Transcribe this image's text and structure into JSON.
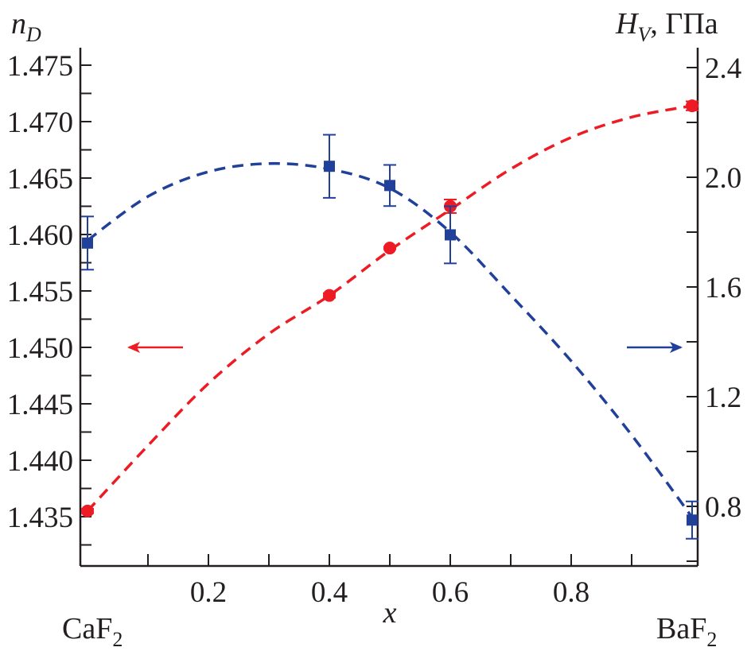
{
  "chart_data": {
    "type": "scatter",
    "title": "",
    "xlabel": "x",
    "x_end_labels": {
      "left": "CaF",
      "left_sub": "2",
      "right": "BaF",
      "right_sub": "2"
    },
    "ylabel_left": {
      "main": "n",
      "sub": "D"
    },
    "ylabel_right": {
      "main": "H",
      "sub": "V",
      "unit": ", ГПа"
    },
    "xlim": [
      0,
      1
    ],
    "ylim_left": [
      1.4318,
      1.4772
    ],
    "ylim_right": [
      0.575,
      2.465
    ],
    "x_ticks": [
      0.2,
      0.4,
      0.6,
      0.8
    ],
    "x_tick_labels": [
      "0.2",
      "0.4",
      "0.6",
      "0.8"
    ],
    "y_left_ticks": [
      1.435,
      1.44,
      1.445,
      1.45,
      1.455,
      1.46,
      1.465,
      1.47,
      1.475
    ],
    "y_left_tick_labels": [
      "1.435",
      "1.440",
      "1.445",
      "1.450",
      "1.455",
      "1.460",
      "1.465",
      "1.470",
      "1.475"
    ],
    "y_right_ticks": [
      0.8,
      1.2,
      1.6,
      2.0,
      2.4
    ],
    "y_right_tick_labels": [
      "0.8",
      "1.2",
      "1.6",
      "2.0",
      "2.4"
    ],
    "grid": false,
    "series": [
      {
        "name": "n_D",
        "axis": "left",
        "color": "#ed1c24",
        "marker": "circle",
        "x": [
          0,
          0.4,
          0.5,
          0.6,
          1.0
        ],
        "y": [
          1.4355,
          1.4546,
          1.4588,
          1.4625,
          1.4714
        ],
        "yerr": [
          0.0002,
          0.0002,
          0.0001,
          0.0006,
          0.0004
        ],
        "fit_x": [
          0,
          0.1,
          0.2,
          0.3,
          0.4,
          0.5,
          0.6,
          0.7,
          0.8,
          0.9,
          1.0
        ],
        "fit_y": [
          1.4355,
          1.4413,
          1.4468,
          1.4512,
          1.4546,
          1.4586,
          1.4622,
          1.4658,
          1.4686,
          1.4704,
          1.4714
        ]
      },
      {
        "name": "H_V",
        "axis": "right",
        "color": "#21409a",
        "marker": "square",
        "x": [
          0,
          0.4,
          0.5,
          0.6,
          1.0
        ],
        "y": [
          1.76,
          2.04,
          1.97,
          1.79,
          0.75
        ],
        "yerr": [
          0.097,
          0.115,
          0.075,
          0.104,
          0.068
        ],
        "fit_x": [
          0,
          0.1,
          0.2,
          0.3,
          0.4,
          0.5,
          0.6,
          0.7,
          0.8,
          0.9,
          1.0
        ],
        "fit_y": [
          1.77,
          1.93,
          2.02,
          2.05,
          2.03,
          1.96,
          1.8,
          1.57,
          1.33,
          1.06,
          0.76
        ]
      }
    ],
    "annotations": [
      {
        "type": "arrow",
        "direction": "left",
        "series": "n_D",
        "color": "#ed1c24"
      },
      {
        "type": "arrow",
        "direction": "right",
        "series": "H_V",
        "color": "#21409a"
      }
    ]
  }
}
